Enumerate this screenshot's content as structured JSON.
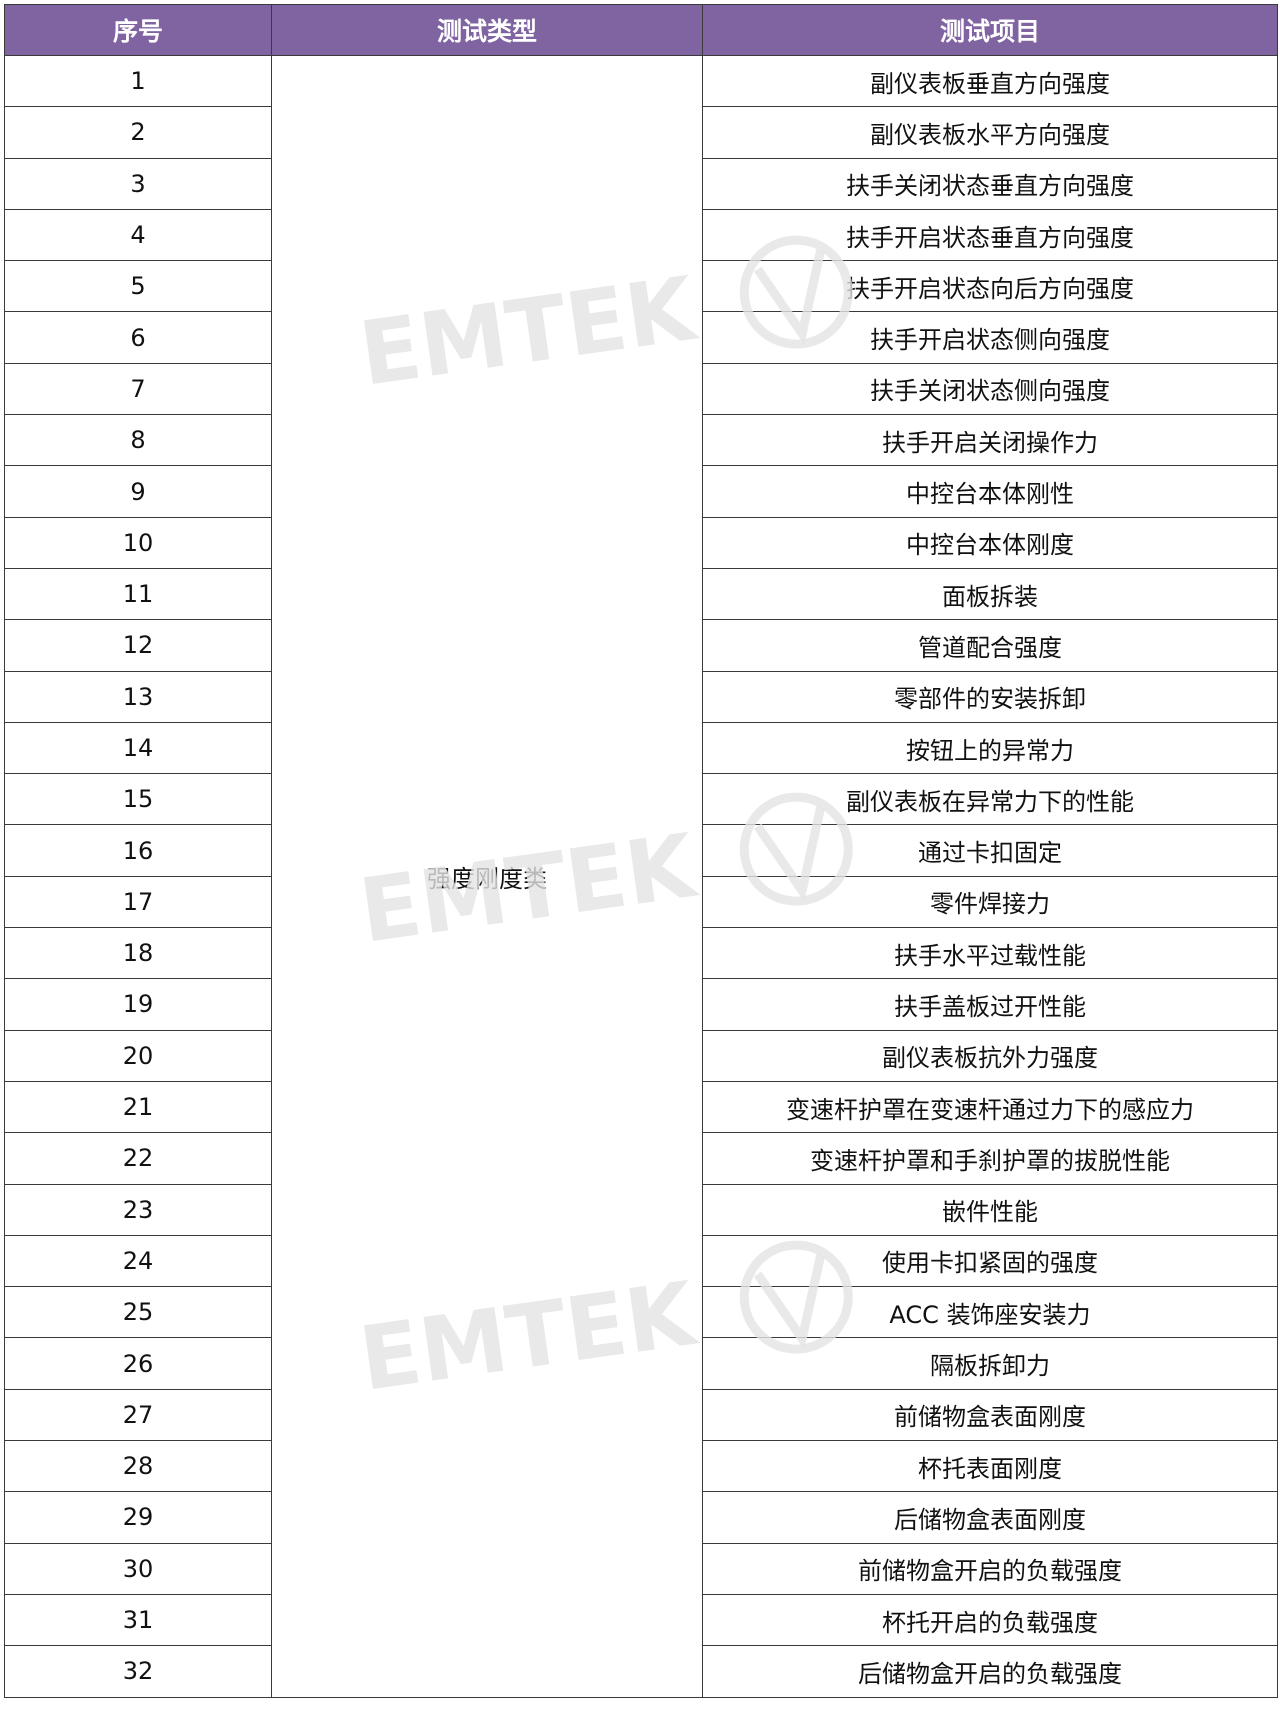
{
  "table": {
    "headers": [
      "序号",
      "测试类型",
      "测试项目"
    ],
    "category": "强度刚度类",
    "rows": [
      {
        "no": "1",
        "item": "副仪表板垂直方向强度"
      },
      {
        "no": "2",
        "item": "副仪表板水平方向强度"
      },
      {
        "no": "3",
        "item": "扶手关闭状态垂直方向强度"
      },
      {
        "no": "4",
        "item": "扶手开启状态垂直方向强度"
      },
      {
        "no": "5",
        "item": "扶手开启状态向后方向强度"
      },
      {
        "no": "6",
        "item": "扶手开启状态侧向强度"
      },
      {
        "no": "7",
        "item": "扶手关闭状态侧向强度"
      },
      {
        "no": "8",
        "item": "扶手开启关闭操作力"
      },
      {
        "no": "9",
        "item": "中控台本体刚性"
      },
      {
        "no": "10",
        "item": "中控台本体刚度"
      },
      {
        "no": "11",
        "item": "面板拆装"
      },
      {
        "no": "12",
        "item": "管道配合强度"
      },
      {
        "no": "13",
        "item": "零部件的安装拆卸"
      },
      {
        "no": "14",
        "item": "按钮上的异常力"
      },
      {
        "no": "15",
        "item": "副仪表板在异常力下的性能"
      },
      {
        "no": "16",
        "item": "通过卡扣固定"
      },
      {
        "no": "17",
        "item": "零件焊接力"
      },
      {
        "no": "18",
        "item": "扶手水平过载性能"
      },
      {
        "no": "19",
        "item": "扶手盖板过开性能"
      },
      {
        "no": "20",
        "item": "副仪表板抗外力强度"
      },
      {
        "no": "21",
        "item": "变速杆护罩在变速杆通过力下的感应力"
      },
      {
        "no": "22",
        "item": "变速杆护罩和手刹护罩的拔脱性能"
      },
      {
        "no": "23",
        "item": "嵌件性能"
      },
      {
        "no": "24",
        "item": "使用卡扣紧固的强度"
      },
      {
        "no": "25",
        "item": "ACC 装饰座安装力"
      },
      {
        "no": "26",
        "item": "隔板拆卸力"
      },
      {
        "no": "27",
        "item": "前储物盒表面刚度"
      },
      {
        "no": "28",
        "item": "杯托表面刚度"
      },
      {
        "no": "29",
        "item": "后储物盒表面刚度"
      },
      {
        "no": "30",
        "item": "前储物盒开启的负载强度"
      },
      {
        "no": "31",
        "item": "杯托开启的负载强度"
      },
      {
        "no": "32",
        "item": "后储物盒开启的负载强度"
      }
    ]
  },
  "watermark": {
    "text": "EMTEK",
    "color": "#e4e4e4"
  },
  "colors": {
    "header_bg": "#8064a2",
    "header_text": "#ffffff",
    "border": "#3a3a3a"
  }
}
